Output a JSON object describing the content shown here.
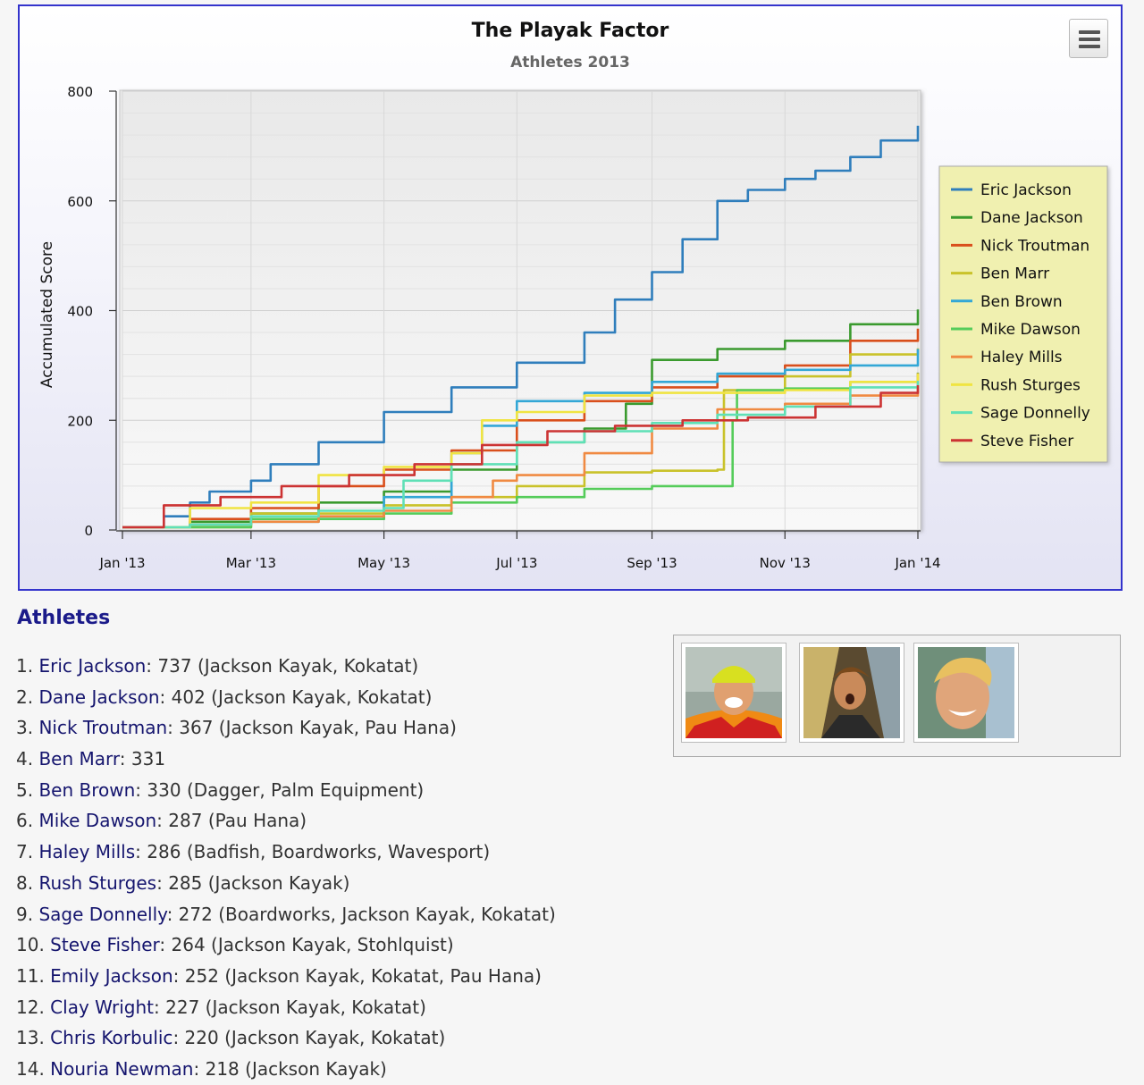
{
  "chart_data": {
    "type": "line",
    "title": "The Playak Factor",
    "subtitle": "Athletes 2013",
    "ylabel": "Accumulated Score",
    "xlabel": "",
    "ylim": [
      0,
      800
    ],
    "yticks": [
      "0",
      "200",
      "400",
      "600",
      "800"
    ],
    "xlim": [
      "2013-01-01",
      "2014-01-01"
    ],
    "xticks": [
      {
        "date": "2013-01-01",
        "label": "Jan '13"
      },
      {
        "date": "2013-03-01",
        "label": "Mar '13"
      },
      {
        "date": "2013-05-01",
        "label": "May '13"
      },
      {
        "date": "2013-07-01",
        "label": "Jul '13"
      },
      {
        "date": "2013-09-01",
        "label": "Sep '13"
      },
      {
        "date": "2013-11-01",
        "label": "Nov '13"
      },
      {
        "date": "2014-01-01",
        "label": "Jan '14"
      }
    ],
    "grid": true,
    "legend_position": "right",
    "series": [
      {
        "name": "Eric Jackson",
        "color": "#2f7ebc",
        "points": [
          [
            "2013-01-01",
            5
          ],
          [
            "2013-01-20",
            25
          ],
          [
            "2013-02-01",
            50
          ],
          [
            "2013-02-10",
            70
          ],
          [
            "2013-03-01",
            90
          ],
          [
            "2013-03-10",
            120
          ],
          [
            "2013-04-01",
            160
          ],
          [
            "2013-05-01",
            215
          ],
          [
            "2013-06-01",
            260
          ],
          [
            "2013-07-01",
            305
          ],
          [
            "2013-08-01",
            360
          ],
          [
            "2013-08-15",
            420
          ],
          [
            "2013-09-01",
            470
          ],
          [
            "2013-09-15",
            530
          ],
          [
            "2013-10-01",
            600
          ],
          [
            "2013-10-15",
            620
          ],
          [
            "2013-11-01",
            640
          ],
          [
            "2013-11-15",
            655
          ],
          [
            "2013-12-01",
            680
          ],
          [
            "2013-12-15",
            710
          ],
          [
            "2014-01-01",
            737
          ]
        ]
      },
      {
        "name": "Dane Jackson",
        "color": "#3a9a2e",
        "points": [
          [
            "2013-01-01",
            5
          ],
          [
            "2013-02-01",
            15
          ],
          [
            "2013-03-01",
            30
          ],
          [
            "2013-04-01",
            50
          ],
          [
            "2013-05-01",
            70
          ],
          [
            "2013-06-01",
            110
          ],
          [
            "2013-07-01",
            160
          ],
          [
            "2013-08-01",
            185
          ],
          [
            "2013-08-20",
            230
          ],
          [
            "2013-09-01",
            310
          ],
          [
            "2013-10-01",
            330
          ],
          [
            "2013-11-01",
            345
          ],
          [
            "2013-12-01",
            375
          ],
          [
            "2014-01-01",
            402
          ]
        ]
      },
      {
        "name": "Nick Troutman",
        "color": "#d94f1c",
        "points": [
          [
            "2013-01-01",
            5
          ],
          [
            "2013-02-01",
            20
          ],
          [
            "2013-03-01",
            40
          ],
          [
            "2013-04-01",
            80
          ],
          [
            "2013-05-01",
            110
          ],
          [
            "2013-06-01",
            145
          ],
          [
            "2013-07-01",
            200
          ],
          [
            "2013-08-01",
            235
          ],
          [
            "2013-09-01",
            260
          ],
          [
            "2013-10-01",
            280
          ],
          [
            "2013-11-01",
            300
          ],
          [
            "2013-12-01",
            345
          ],
          [
            "2014-01-01",
            367
          ]
        ]
      },
      {
        "name": "Ben Marr",
        "color": "#c9c22a",
        "points": [
          [
            "2013-01-01",
            5
          ],
          [
            "2013-03-01",
            30
          ],
          [
            "2013-05-01",
            45
          ],
          [
            "2013-06-01",
            60
          ],
          [
            "2013-07-01",
            80
          ],
          [
            "2013-08-01",
            105
          ],
          [
            "2013-09-01",
            108
          ],
          [
            "2013-10-01",
            110
          ],
          [
            "2013-10-04",
            255
          ],
          [
            "2013-11-01",
            280
          ],
          [
            "2013-12-01",
            320
          ],
          [
            "2014-01-01",
            331
          ]
        ]
      },
      {
        "name": "Ben Brown",
        "color": "#33a7d6",
        "points": [
          [
            "2013-01-01",
            5
          ],
          [
            "2013-02-01",
            10
          ],
          [
            "2013-03-01",
            15
          ],
          [
            "2013-04-01",
            20
          ],
          [
            "2013-05-01",
            60
          ],
          [
            "2013-06-01",
            140
          ],
          [
            "2013-06-15",
            190
          ],
          [
            "2013-07-01",
            235
          ],
          [
            "2013-08-01",
            250
          ],
          [
            "2013-09-01",
            270
          ],
          [
            "2013-10-01",
            285
          ],
          [
            "2013-11-01",
            292
          ],
          [
            "2013-12-01",
            300
          ],
          [
            "2014-01-01",
            330
          ]
        ]
      },
      {
        "name": "Mike Dawson",
        "color": "#55cc5a",
        "points": [
          [
            "2013-01-01",
            5
          ],
          [
            "2013-03-01",
            20
          ],
          [
            "2013-05-01",
            30
          ],
          [
            "2013-06-01",
            50
          ],
          [
            "2013-07-01",
            60
          ],
          [
            "2013-08-01",
            75
          ],
          [
            "2013-09-01",
            80
          ],
          [
            "2013-10-01",
            80
          ],
          [
            "2013-10-08",
            200
          ],
          [
            "2013-10-10",
            255
          ],
          [
            "2013-11-01",
            258
          ],
          [
            "2013-12-01",
            270
          ],
          [
            "2014-01-01",
            287
          ]
        ]
      },
      {
        "name": "Haley Mills",
        "color": "#f08a42",
        "points": [
          [
            "2013-01-01",
            5
          ],
          [
            "2013-02-01",
            10
          ],
          [
            "2013-03-01",
            15
          ],
          [
            "2013-04-01",
            25
          ],
          [
            "2013-05-01",
            35
          ],
          [
            "2013-06-01",
            60
          ],
          [
            "2013-06-20",
            90
          ],
          [
            "2013-07-01",
            100
          ],
          [
            "2013-08-01",
            140
          ],
          [
            "2013-09-01",
            185
          ],
          [
            "2013-10-01",
            220
          ],
          [
            "2013-11-01",
            230
          ],
          [
            "2013-12-01",
            245
          ],
          [
            "2014-01-01",
            286
          ]
        ]
      },
      {
        "name": "Rush Sturges",
        "color": "#f0e442",
        "points": [
          [
            "2013-01-01",
            5
          ],
          [
            "2013-02-01",
            40
          ],
          [
            "2013-03-01",
            50
          ],
          [
            "2013-04-01",
            100
          ],
          [
            "2013-05-01",
            115
          ],
          [
            "2013-06-01",
            140
          ],
          [
            "2013-06-15",
            200
          ],
          [
            "2013-07-01",
            215
          ],
          [
            "2013-08-01",
            245
          ],
          [
            "2013-09-01",
            250
          ],
          [
            "2013-10-01",
            250
          ],
          [
            "2013-11-01",
            255
          ],
          [
            "2013-12-01",
            270
          ],
          [
            "2014-01-01",
            285
          ]
        ]
      },
      {
        "name": "Sage Donnelly",
        "color": "#5fe0b6",
        "points": [
          [
            "2013-01-01",
            5
          ],
          [
            "2013-02-01",
            10
          ],
          [
            "2013-03-01",
            25
          ],
          [
            "2013-04-01",
            35
          ],
          [
            "2013-05-01",
            40
          ],
          [
            "2013-05-10",
            90
          ],
          [
            "2013-06-01",
            120
          ],
          [
            "2013-07-01",
            160
          ],
          [
            "2013-08-01",
            180
          ],
          [
            "2013-09-01",
            195
          ],
          [
            "2013-10-01",
            210
          ],
          [
            "2013-11-01",
            225
          ],
          [
            "2013-12-01",
            260
          ],
          [
            "2014-01-01",
            272
          ]
        ]
      },
      {
        "name": "Steve Fisher",
        "color": "#cc3333",
        "points": [
          [
            "2013-01-01",
            5
          ],
          [
            "2013-01-20",
            45
          ],
          [
            "2013-02-15",
            60
          ],
          [
            "2013-03-15",
            80
          ],
          [
            "2013-04-15",
            100
          ],
          [
            "2013-05-15",
            120
          ],
          [
            "2013-06-15",
            155
          ],
          [
            "2013-07-15",
            180
          ],
          [
            "2013-08-15",
            190
          ],
          [
            "2013-09-15",
            200
          ],
          [
            "2013-10-15",
            205
          ],
          [
            "2013-11-15",
            225
          ],
          [
            "2013-12-15",
            250
          ],
          [
            "2014-01-01",
            264
          ]
        ]
      }
    ]
  },
  "menu": {
    "icon": "hamburger-icon"
  },
  "athletes_heading": "Athletes",
  "athletes": [
    {
      "rank": "1.",
      "name": "Eric Jackson",
      "score": "737",
      "sponsors": "(Jackson Kayak, Kokatat)"
    },
    {
      "rank": "2.",
      "name": "Dane Jackson",
      "score": "402",
      "sponsors": "(Jackson Kayak, Kokatat)"
    },
    {
      "rank": "3.",
      "name": "Nick Troutman",
      "score": "367",
      "sponsors": "(Jackson Kayak, Pau Hana)"
    },
    {
      "rank": "4.",
      "name": "Ben Marr",
      "score": "331",
      "sponsors": ""
    },
    {
      "rank": "5.",
      "name": "Ben Brown",
      "score": "330",
      "sponsors": "(Dagger, Palm Equipment)"
    },
    {
      "rank": "6.",
      "name": "Mike Dawson",
      "score": "287",
      "sponsors": "(Pau Hana)"
    },
    {
      "rank": "7.",
      "name": "Haley Mills",
      "score": "286",
      "sponsors": "(Badfish, Boardworks, Wavesport)"
    },
    {
      "rank": "8.",
      "name": "Rush Sturges",
      "score": "285",
      "sponsors": "(Jackson Kayak)"
    },
    {
      "rank": "9.",
      "name": "Sage Donnelly",
      "score": "272",
      "sponsors": "(Boardworks, Jackson Kayak, Kokatat)"
    },
    {
      "rank": "10.",
      "name": "Steve Fisher",
      "score": "264",
      "sponsors": "(Jackson Kayak, Stohlquist)"
    },
    {
      "rank": "11.",
      "name": "Emily Jackson",
      "score": "252",
      "sponsors": "(Jackson Kayak, Kokatat, Pau Hana)"
    },
    {
      "rank": "12.",
      "name": "Clay Wright",
      "score": "227",
      "sponsors": "(Jackson Kayak, Kokatat)"
    },
    {
      "rank": "13.",
      "name": "Chris Korbulic",
      "score": "220",
      "sponsors": "(Jackson Kayak, Kokatat)"
    },
    {
      "rank": "14.",
      "name": "Nouria Newman",
      "score": "218",
      "sponsors": "(Jackson Kayak)"
    }
  ],
  "photos": [
    {
      "name": "athlete-photo-1"
    },
    {
      "name": "athlete-photo-2"
    },
    {
      "name": "athlete-photo-3"
    }
  ]
}
